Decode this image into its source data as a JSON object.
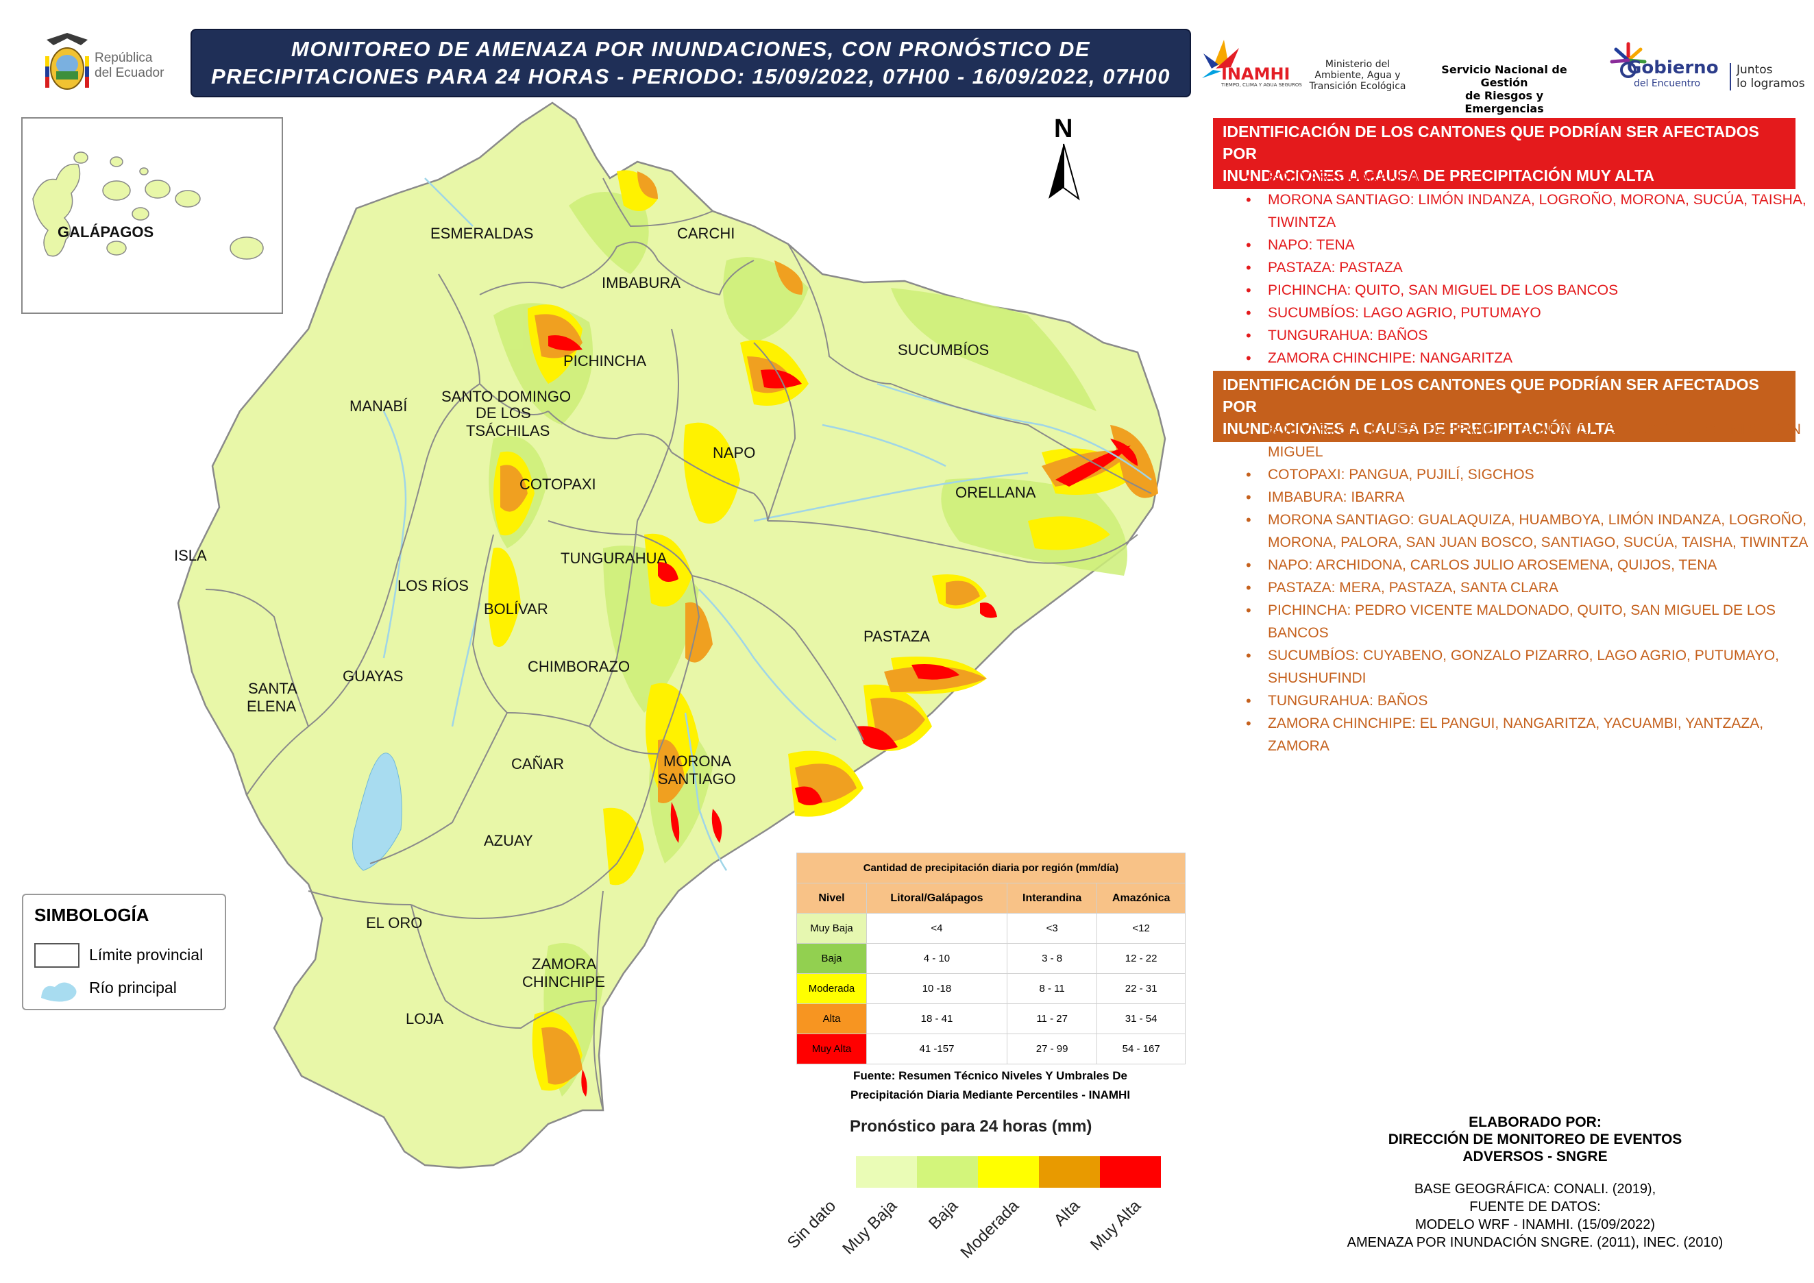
{
  "header": {
    "title_line1": "MONITOREO DE AMENAZA POR INUNDACIONES, CON PRONÓSTICO DE",
    "title_line2": "PRECIPITACIONES  PARA 24  HORAS - PERIODO: 15/09/2022, 07H00 - 16/09/2022, 07H00",
    "republica_line1": "República",
    "republica_line2": "del Ecuador"
  },
  "logos": {
    "inamhi": "INAMHI",
    "inamhi_sub": "TIEMPO, CLIMA Y AGUA SEGUROS",
    "ministerio": [
      "Ministerio del",
      "Ambiente, Agua y",
      "Transición Ecológica"
    ],
    "sngre": [
      "Servicio Nacional de Gestión",
      "de Riesgos y Emergencias"
    ],
    "gobierno": "Gobierno",
    "gobierno_sub": "del Encuentro",
    "juntos": [
      "Juntos",
      "lo logramos"
    ]
  },
  "map": {
    "north_label": "N",
    "galapagos_label": "GALÁPAGOS",
    "provinces": {
      "esmeraldas": "ESMERALDAS",
      "carchi": "CARCHI",
      "imbabura": "IMBABURA",
      "sucumbios": "SUCUMBÍOS",
      "pichincha": "PICHINCHA",
      "manabi": "MANABÍ",
      "santo_domingo": [
        "SANTO DOMINGO",
        "DE LOS",
        "TSÁCHILAS"
      ],
      "napo": "NAPO",
      "cotopaxi": "COTOPAXI",
      "orellana": "ORELLANA",
      "isla": "ISLA",
      "tungurahua": "TUNGURAHUA",
      "los_rios": "LOS RÍOS",
      "bolivar": "BOLÍVAR",
      "pastaza": "PASTAZA",
      "santa_elena": [
        "SANTA",
        "ELENA"
      ],
      "guayas": "GUAYAS",
      "chimborazo": "CHIMBORAZO",
      "canar": "CAÑAR",
      "morona_santiago": [
        "MORONA",
        "SANTIAGO"
      ],
      "azuay": "AZUAY",
      "el_oro": "EL ORO",
      "zamora_chinchipe": [
        "ZAMORA",
        "CHINCHIPE"
      ],
      "loja": "LOJA"
    }
  },
  "muy_alta": {
    "header": [
      "IDENTIFICACIÓN DE LOS CANTONES QUE PODRÍAN SER AFECTADOS POR",
      "INUNDACIONES A CAUSA DE  PRECIPITACIÓN MUY ALTA"
    ],
    "items": [
      [
        "BOLÍVAR: GUARANDA"
      ],
      [
        "MORONA SANTIAGO: LIMÓN INDANZA, LOGROÑO, MORONA, SUCÚA, TAISHA,",
        "TIWINTZA"
      ],
      [
        "NAPO: TENA"
      ],
      [
        "PASTAZA: PASTAZA"
      ],
      [
        "PICHINCHA: QUITO, SAN MIGUEL DE LOS BANCOS"
      ],
      [
        "SUCUMBÍOS: LAGO AGRIO, PUTUMAYO"
      ],
      [
        "TUNGURAHUA: BAÑOS"
      ],
      [
        "ZAMORA CHINCHIPE: NANGARITZA"
      ]
    ]
  },
  "alta": {
    "header": [
      "IDENTIFICACIÓN DE LOS CANTONES QUE PODRÍAN SER AFECTADOS POR",
      "INUNDACIONES A CAUSA DE  PRECIPITACIÓN  ALTA"
    ],
    "items": [
      [
        "BOLÍVAR: CHILLANES, ECHEANDÍA, GUARANDA, SAN JOSÉ DE CHIMBO, SAN",
        "MIGUEL"
      ],
      [
        "COTOPAXI: PANGUA, PUJILÍ, SIGCHOS"
      ],
      [
        "IMBABURA: IBARRA"
      ],
      [
        "MORONA SANTIAGO: GUALAQUIZA, HUAMBOYA, LIMÓN INDANZA, LOGROÑO,",
        "MORONA, PALORA, SAN JUAN BOSCO, SANTIAGO, SUCÚA, TAISHA, TIWINTZA"
      ],
      [
        "NAPO: ARCHIDONA, CARLOS JULIO AROSEMENA, QUIJOS, TENA"
      ],
      [
        "PASTAZA: MERA, PASTAZA, SANTA CLARA"
      ],
      [
        "PICHINCHA: PEDRO VICENTE MALDONADO, QUITO, SAN MIGUEL DE LOS",
        "BANCOS"
      ],
      [
        "SUCUMBÍOS: CUYABENO, GONZALO PIZARRO, LAGO AGRIO, PUTUMAYO,",
        "SHUSHUFINDI"
      ],
      [
        "TUNGURAHUA: BAÑOS"
      ],
      [
        "ZAMORA CHINCHIPE: EL PANGUI, NANGARITZA, YACUAMBI, YANTZAZA,",
        "ZAMORA"
      ]
    ]
  },
  "legend_table": {
    "caption": "Cantidad de precipitación diaria por región (mm/día)",
    "headers": [
      "Nivel",
      "Litoral/Galápagos",
      "Interandina",
      "Amazónica"
    ],
    "rows": [
      {
        "nivel": "Muy Baja",
        "color": "#e6f7b0",
        "litoral": "<4",
        "interandina": "<3",
        "amazonica": "<12"
      },
      {
        "nivel": "Baja",
        "color": "#92d050",
        "litoral": "4 - 10",
        "interandina": "3 - 8",
        "amazonica": "12 - 22"
      },
      {
        "nivel": "Moderada",
        "color": "#ffff00",
        "litoral": "10 -18",
        "interandina": "8 - 11",
        "amazonica": "22 - 31"
      },
      {
        "nivel": "Alta",
        "color": "#f79521",
        "litoral": "18 - 41",
        "interandina": "11 - 27",
        "amazonica": "31 - 54"
      },
      {
        "nivel": "Muy Alta",
        "color": "#ff0000",
        "litoral": "41 -157",
        "interandina": "27 - 99",
        "amazonica": "54 - 167"
      }
    ],
    "fuente": [
      "Fuente: Resumen Técnico Niveles Y Umbrales De",
      "Precipitación Diaria Mediante Percentiles - INAMHI"
    ]
  },
  "pronostico": {
    "title": "Pronóstico para 24 horas (mm)",
    "classes": [
      {
        "label": "Sin dato",
        "color": ""
      },
      {
        "label": "Muy Baja",
        "color": "#eafcb6"
      },
      {
        "label": "Baja",
        "color": "#d3f57b"
      },
      {
        "label": "Moderada",
        "color": "#ffff00"
      },
      {
        "label": "Alta",
        "color": "#e89a00"
      },
      {
        "label": "Muy Alta",
        "color": "#ff0000"
      }
    ]
  },
  "simbologia": {
    "title": "SIMBOLOGÍA",
    "limite": "Límite provincial",
    "rio": "Río principal"
  },
  "credits": {
    "elaborado": [
      "ELABORADO POR:",
      "DIRECCIÓN DE MONITOREO DE EVENTOS",
      "ADVERSOS - SNGRE"
    ],
    "base": [
      "BASE GEOGRÁFICA: CONALI. (2019),",
      "FUENTE DE DATOS:",
      "MODELO WRF - INAMHI. (15/09/2022)",
      "AMENAZA POR INUNDACIÓN SNGRE. (2011), INEC. (2010)"
    ]
  },
  "colors": {
    "land": "#e8f7a8",
    "baja": "#cdee77",
    "moderada": "#fff200",
    "alta": "#f0a020",
    "muy_alta": "#ff0000",
    "border": "#8a8a8a",
    "river": "#9fd5e8",
    "lake": "#a8dcf0"
  }
}
